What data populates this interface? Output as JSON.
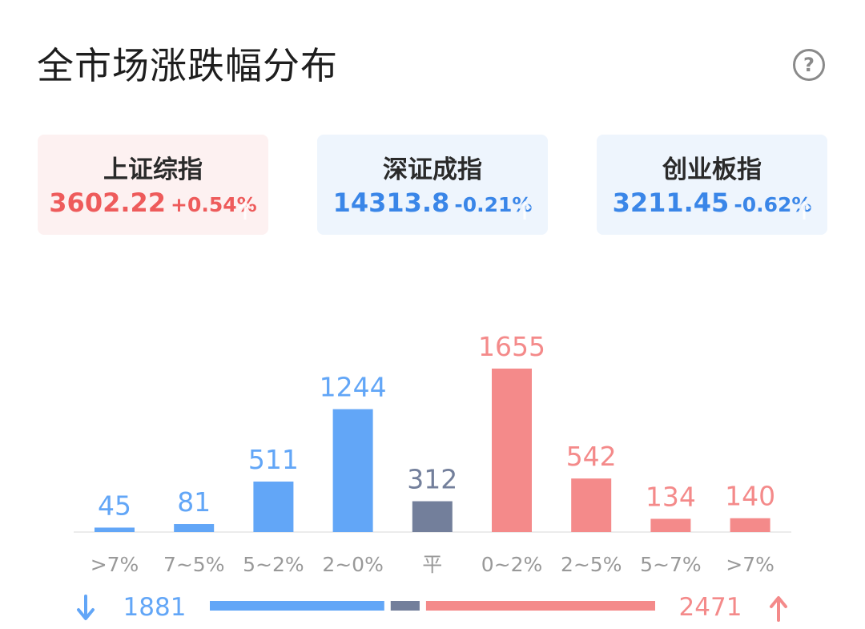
{
  "header": {
    "title": "全市场涨跌幅分布",
    "help_icon": "question-circle-icon",
    "help_glyph": "?"
  },
  "indices": [
    {
      "name": "上证综指",
      "value": "3602.22",
      "change": "+0.54%",
      "direction": "up"
    },
    {
      "name": "深证成指",
      "value": "14313.8",
      "change": "-0.21%",
      "direction": "down"
    },
    {
      "name": "创业板指",
      "value": "3211.45",
      "change": "-0.62%",
      "direction": "down"
    }
  ],
  "colors": {
    "up": "#f48a8a",
    "down": "#62a6f7",
    "flat": "#737f9b",
    "up_text": "#ee5b5b",
    "down_text": "#3a86e8"
  },
  "chart_data": {
    "type": "bar",
    "categories": [
      ">7%",
      "7~5%",
      "5~2%",
      "2~0%",
      "平",
      "0~2%",
      "2~5%",
      "5~7%",
      ">7%"
    ],
    "values": [
      45,
      81,
      511,
      1244,
      312,
      1655,
      542,
      134,
      140
    ],
    "bar_groups": [
      "down",
      "down",
      "down",
      "down",
      "flat",
      "up",
      "up",
      "up",
      "up"
    ],
    "ylim": [
      0,
      1655
    ]
  },
  "summary": {
    "down_total": "1881",
    "up_total": "2471",
    "flat_total": 312,
    "down_icon": "arrow-down-icon",
    "up_icon": "arrow-up-icon"
  }
}
